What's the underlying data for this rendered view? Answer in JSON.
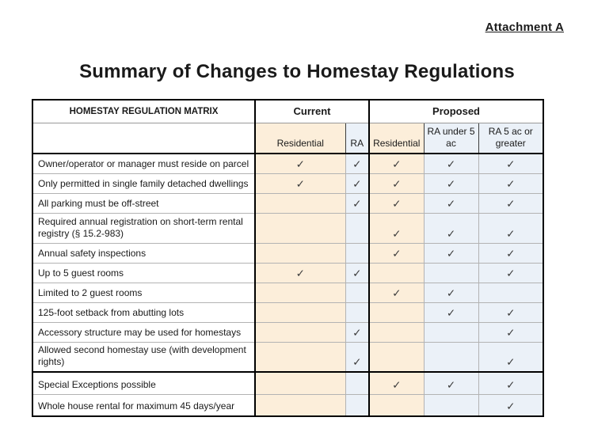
{
  "page": {
    "attachment_label": "Attachment A",
    "title": "Summary of Changes to Homestay Regulations"
  },
  "table": {
    "matrix_header": "HOMESTAY REGULATION MATRIX",
    "groups": {
      "current": "Current",
      "proposed": "Proposed"
    },
    "column_headers": [
      "Residential",
      "RA",
      "Residential",
      "RA under 5 ac",
      "RA 5 ac or greater"
    ],
    "check_glyph": "✓",
    "rows": [
      {
        "label": "Owner/operator or manager must reside on parcel",
        "cells": [
          "✓",
          "✓",
          "✓",
          "✓",
          "✓"
        ]
      },
      {
        "label": "Only permitted in single family detached dwellings",
        "cells": [
          "✓",
          "✓",
          "✓",
          "✓",
          "✓"
        ]
      },
      {
        "label": "All parking must be off-street",
        "cells": [
          "",
          "✓",
          "✓",
          "✓",
          "✓"
        ]
      },
      {
        "label": "Required annual registration on short-term rental registry (§ 15.2-983)",
        "cells": [
          "",
          "",
          "✓",
          "✓",
          "✓"
        ]
      },
      {
        "label": "Annual safety inspections",
        "cells": [
          "",
          "",
          "✓",
          "✓",
          "✓"
        ]
      },
      {
        "label": "Up to 5 guest rooms",
        "cells": [
          "✓",
          "✓",
          "",
          "",
          "✓"
        ]
      },
      {
        "label": "Limited to 2 guest rooms",
        "cells": [
          "",
          "",
          "✓",
          "✓",
          ""
        ]
      },
      {
        "label": "125-foot setback from abutting lots",
        "cells": [
          "",
          "",
          "",
          "✓",
          "✓"
        ]
      },
      {
        "label": "Accessory structure may be used for homestays",
        "cells": [
          "",
          "✓",
          "",
          "",
          "✓"
        ]
      },
      {
        "label": "Allowed second homestay use (with development rights)",
        "cells": [
          "",
          "✓",
          "",
          "",
          "✓"
        ]
      },
      {
        "label": "Special Exceptions possible",
        "cells": [
          "",
          "",
          "✓",
          "✓",
          "✓"
        ]
      },
      {
        "label": "Whole house rental for maximum 45 days/year",
        "cells": [
          "",
          "",
          "",
          "",
          "✓"
        ]
      }
    ]
  },
  "colors": {
    "residential_column_bg": "#FCEEDA",
    "ra_column_bg": "#EBF1F8",
    "thick_border": "#000000",
    "thin_border": "#B3B3B3",
    "text": "#1A1A1A"
  }
}
